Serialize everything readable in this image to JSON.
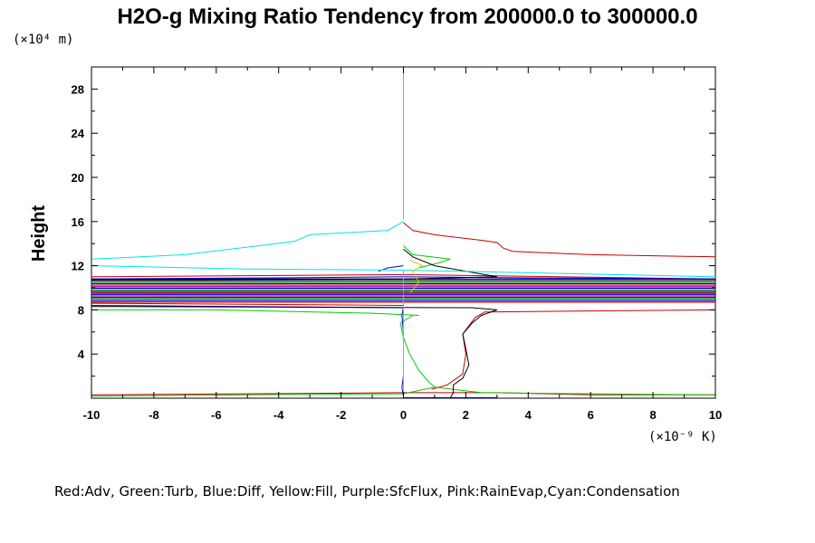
{
  "chart_data": {
    "type": "line",
    "title": "H2O-g Mixing Ratio Tendency from 200000.0 to 300000.0",
    "ylabel": "Height",
    "xlabel": "",
    "x_unit": "(×10⁻⁹ K)",
    "y_unit": "(×10⁴ m)",
    "xlim": [
      -10,
      10
    ],
    "ylim": [
      0,
      30
    ],
    "x_ticks": [
      -10,
      -8,
      -6,
      -4,
      -2,
      0,
      2,
      4,
      6,
      8,
      10
    ],
    "y_ticks": [
      4,
      8,
      12,
      16,
      20,
      24,
      28
    ],
    "grid": false,
    "legend": "Red:Adv, Green:Turb, Blue:Diff, Yellow:Fill, Purple:SfcFlux, Pink:RainEvap,Cyan:Condensation",
    "series": [
      {
        "color": "#cc0000",
        "points": [
          [
            -10,
            0.3
          ],
          [
            -5,
            0.4
          ],
          [
            0,
            0.5
          ],
          [
            3,
            0.5
          ],
          [
            6,
            0.3
          ],
          [
            10,
            0.3
          ]
        ]
      },
      {
        "color": "#cc0000",
        "points": [
          [
            0.9,
            0.8
          ],
          [
            1.4,
            1.2
          ],
          [
            1.9,
            2.2
          ],
          [
            2.0,
            4.0
          ],
          [
            1.9,
            5.8
          ],
          [
            2.0,
            6.2
          ],
          [
            2.3,
            7.3
          ],
          [
            2.6,
            7.8
          ],
          [
            6,
            7.9
          ],
          [
            10,
            8.0
          ]
        ]
      },
      {
        "color": "#cc0000",
        "points": [
          [
            0,
            8.4
          ],
          [
            -5,
            8.5
          ],
          [
            -10,
            8.6
          ]
        ]
      },
      {
        "color": "#cc0000",
        "points": [
          [
            -10,
            11.0
          ],
          [
            -5,
            11.1
          ],
          [
            0,
            11.2
          ],
          [
            5,
            11.0
          ],
          [
            10,
            10.8
          ]
        ]
      },
      {
        "color": "#cc0000",
        "points": [
          [
            0,
            15.9
          ],
          [
            0.3,
            15.2
          ],
          [
            1,
            14.8
          ],
          [
            2.5,
            14.3
          ],
          [
            3,
            14.1
          ],
          [
            3.2,
            13.6
          ],
          [
            3.5,
            13.3
          ],
          [
            6,
            13.0
          ],
          [
            10,
            12.8
          ]
        ]
      },
      {
        "color": "#00cc00",
        "points": [
          [
            -10,
            0.2
          ],
          [
            -5,
            0.3
          ],
          [
            0,
            0.4
          ],
          [
            1,
            1.0
          ],
          [
            2.5,
            0.5
          ],
          [
            6,
            0.4
          ],
          [
            10,
            0.3
          ]
        ]
      },
      {
        "color": "#00cc00",
        "points": [
          [
            0.3,
            7.5
          ],
          [
            -0.1,
            6.8
          ],
          [
            0,
            5.5
          ],
          [
            0.2,
            4.0
          ],
          [
            0.5,
            2.5
          ],
          [
            0.8,
            1.5
          ],
          [
            1.0,
            1.0
          ]
        ]
      },
      {
        "color": "#00cc00",
        "points": [
          [
            0.5,
            7.5
          ],
          [
            -1,
            7.7
          ],
          [
            -6,
            8.0
          ],
          [
            -10,
            8.0
          ]
        ]
      },
      {
        "color": "#00cc00",
        "points": [
          [
            0,
            13.8
          ],
          [
            0.3,
            13.0
          ],
          [
            1.5,
            12.6
          ],
          [
            1.2,
            12.3
          ],
          [
            0.5,
            11.8
          ]
        ]
      },
      {
        "color": "#0000cc",
        "points": [
          [
            0,
            0.2
          ],
          [
            -0.05,
            1.0
          ],
          [
            0,
            2.0
          ],
          [
            0,
            6.0
          ],
          [
            -0.05,
            7.5
          ],
          [
            0,
            8.2
          ],
          [
            -5,
            8.3
          ],
          [
            -10,
            8.4
          ]
        ]
      },
      {
        "color": "#0000cc",
        "points": [
          [
            0,
            0.05
          ],
          [
            1,
            0.05
          ],
          [
            3,
            0.05
          ]
        ]
      },
      {
        "color": "#0000cc",
        "points": [
          [
            -10,
            10.8
          ],
          [
            -4,
            10.9
          ],
          [
            0,
            11.0
          ],
          [
            4,
            10.9
          ],
          [
            10,
            10.8
          ]
        ]
      },
      {
        "color": "#0000cc",
        "points": [
          [
            0,
            12.0
          ],
          [
            -0.5,
            11.8
          ],
          [
            -0.8,
            11.5
          ]
        ]
      },
      {
        "color": "#000000",
        "points": [
          [
            1.5,
            0.0
          ],
          [
            1.6,
            0.5
          ],
          [
            1.6,
            1.2
          ],
          [
            1.9,
            1.8
          ],
          [
            2.1,
            3.0
          ],
          [
            2.0,
            4.5
          ],
          [
            1.9,
            5.8
          ],
          [
            2.2,
            6.8
          ],
          [
            2.5,
            7.5
          ],
          [
            3.0,
            8.0
          ],
          [
            2.2,
            8.2
          ],
          [
            -10,
            8.3
          ]
        ]
      },
      {
        "color": "#000000",
        "points": [
          [
            0,
            13.5
          ],
          [
            0.3,
            12.8
          ],
          [
            1,
            12.0
          ],
          [
            2,
            11.5
          ],
          [
            3,
            11.0
          ],
          [
            0,
            10.8
          ],
          [
            -10,
            10.7
          ]
        ]
      },
      {
        "color": "#00e5e5",
        "points": [
          [
            0,
            30
          ],
          [
            0,
            20
          ],
          [
            0,
            16.2
          ]
        ]
      },
      {
        "color": "#00e5e5",
        "points": [
          [
            0,
            16.0
          ],
          [
            -0.5,
            15.2
          ],
          [
            -3,
            14.8
          ],
          [
            -3.5,
            14.2
          ],
          [
            -7,
            13.0
          ],
          [
            -10,
            12.6
          ]
        ]
      },
      {
        "color": "#00e5e5",
        "points": [
          [
            -10,
            12.0
          ],
          [
            -5,
            11.7
          ],
          [
            0,
            11.6
          ],
          [
            5,
            11.3
          ],
          [
            10,
            11.0
          ]
        ]
      },
      {
        "color": "#00e5e5",
        "points": [
          [
            0,
            11.6
          ],
          [
            0,
            0
          ]
        ]
      },
      {
        "color": "#cccc00",
        "points": [
          [
            0.2,
            9.5
          ],
          [
            0.5,
            10.5
          ],
          [
            0.3,
            11.5
          ],
          [
            0.6,
            12.0
          ],
          [
            0.2,
            12.5
          ]
        ]
      },
      {
        "color": "#aa00aa",
        "points": [
          [
            -10,
            9.5
          ],
          [
            10,
            9.5
          ]
        ]
      }
    ],
    "band": {
      "y_range": [
        8.7,
        10.8
      ],
      "lines": 16,
      "colors": [
        "#cc0000",
        "#0000cc",
        "#00cc00",
        "#000000",
        "#aa00aa",
        "#0000cc",
        "#cc0000",
        "#000000",
        "#00cc00",
        "#0000cc",
        "#aa00aa",
        "#cc0000",
        "#0000cc",
        "#00cc00",
        "#000000",
        "#0000cc"
      ]
    }
  }
}
